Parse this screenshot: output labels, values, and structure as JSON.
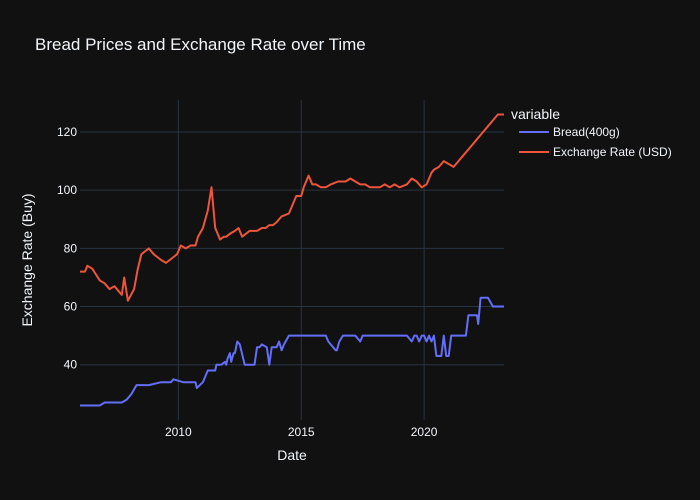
{
  "chart_data": {
    "type": "line",
    "title": "Bread Prices and Exchange Rate over Time",
    "xlabel": "Date",
    "ylabel": "Exchange Rate (Buy)",
    "legend_title": "variable",
    "legend_position": "top-right",
    "grid": true,
    "xlim": [
      2006.0,
      2023.25
    ],
    "ylim": [
      21,
      131
    ],
    "x_ticks": [
      2010,
      2015,
      2020
    ],
    "x_tick_labels": [
      "2010",
      "2015",
      "2020"
    ],
    "y_ticks": [
      40,
      60,
      80,
      100,
      120
    ],
    "y_tick_labels": [
      "40",
      "60",
      "80",
      "100",
      "120"
    ],
    "colors": {
      "background": "#111111",
      "grid": "#283442",
      "text": "#f2f5fa",
      "bread": "#636efa",
      "exchange": "#ef553b"
    },
    "series": [
      {
        "name": "Bread(400g)",
        "color": "#636efa",
        "x": [
          2006.0,
          2006.5,
          2006.8,
          2007.0,
          2007.4,
          2007.5,
          2007.7,
          2007.9,
          2008.1,
          2008.3,
          2008.7,
          2008.8,
          2009.3,
          2009.4,
          2009.5,
          2009.6,
          2009.7,
          2009.8,
          2010.2,
          2010.3,
          2010.4,
          2010.5,
          2010.7,
          2010.75,
          2011.0,
          2011.2,
          2011.25,
          2011.5,
          2011.55,
          2011.7,
          2011.75,
          2011.9,
          2011.95,
          2012.0,
          2012.1,
          2012.15,
          2012.25,
          2012.3,
          2012.4,
          2012.5,
          2012.7,
          2012.8,
          2012.9,
          2013.1,
          2013.2,
          2013.3,
          2013.4,
          2013.6,
          2013.7,
          2013.8,
          2013.9,
          2014.0,
          2014.1,
          2014.2,
          2014.3,
          2014.5,
          2015.0,
          2016.0,
          2016.1,
          2016.2,
          2016.4,
          2016.45,
          2016.55,
          2016.7,
          2016.8,
          2017.0,
          2017.2,
          2017.4,
          2017.5,
          2017.7,
          2018.0,
          2018.5,
          2018.9,
          2019.0,
          2019.3,
          2019.5,
          2019.6,
          2019.7,
          2019.8,
          2019.9,
          2020.0,
          2020.1,
          2020.2,
          2020.3,
          2020.4,
          2020.5,
          2020.6,
          2020.7,
          2020.8,
          2020.9,
          2021.0,
          2021.1,
          2021.2,
          2021.3,
          2021.5,
          2021.7,
          2021.8,
          2021.95,
          2022.05,
          2022.15,
          2022.2,
          2022.3,
          2022.6,
          2022.8,
          2023.0,
          2023.25
        ],
        "values": [
          26,
          26,
          26,
          27,
          27,
          27,
          27,
          28,
          30,
          33,
          33,
          33,
          34,
          34,
          34,
          34,
          34,
          35,
          34,
          34,
          34,
          34,
          34,
          32,
          34,
          38,
          38,
          38,
          40,
          40,
          40,
          41,
          40,
          42,
          44,
          41,
          44,
          44,
          48,
          47,
          40,
          40,
          40,
          40,
          46,
          46,
          47,
          46,
          40,
          46,
          46,
          46,
          48,
          45,
          47,
          50,
          50,
          50,
          48,
          47,
          45,
          45,
          48,
          50,
          50,
          50,
          50,
          48,
          50,
          50,
          50,
          50,
          50,
          50,
          50,
          48,
          50,
          50,
          48,
          50,
          50,
          48,
          50,
          48,
          50,
          43,
          43,
          43,
          50,
          43,
          43,
          50,
          50,
          50,
          50,
          50,
          57,
          57,
          57,
          57,
          54,
          63,
          63,
          60,
          60,
          60
        ]
      },
      {
        "name": "Exchange Rate (USD)",
        "color": "#ef553b",
        "x": [
          2006.0,
          2006.2,
          2006.3,
          2006.5,
          2006.8,
          2007.0,
          2007.2,
          2007.4,
          2007.7,
          2007.8,
          2007.95,
          2008.2,
          2008.35,
          2008.5,
          2008.8,
          2009.0,
          2009.3,
          2009.5,
          2009.8,
          2009.95,
          2010.1,
          2010.3,
          2010.5,
          2010.7,
          2010.8,
          2011.0,
          2011.2,
          2011.35,
          2011.5,
          2011.7,
          2011.85,
          2011.95,
          2012.1,
          2012.3,
          2012.45,
          2012.6,
          2012.9,
          2013.2,
          2013.4,
          2013.55,
          2013.7,
          2013.85,
          2014.0,
          2014.2,
          2014.5,
          2014.8,
          2015.0,
          2015.1,
          2015.3,
          2015.45,
          2015.6,
          2015.8,
          2016.0,
          2016.2,
          2016.5,
          2016.8,
          2017.0,
          2017.2,
          2017.4,
          2017.6,
          2017.8,
          2018.0,
          2018.2,
          2018.4,
          2018.6,
          2018.8,
          2019.0,
          2019.3,
          2019.5,
          2019.7,
          2019.9,
          2020.1,
          2020.3,
          2020.4,
          2020.6,
          2020.8,
          2021.0,
          2021.2,
          2021.4,
          2021.6,
          2021.8,
          2022.0,
          2022.2,
          2022.4,
          2022.6,
          2022.8,
          2023.0,
          2023.25
        ],
        "values": [
          72,
          72,
          74,
          73,
          69,
          68,
          66,
          67,
          64,
          70,
          62,
          66,
          73,
          78,
          80,
          78,
          76,
          75,
          77,
          78,
          81,
          80,
          81,
          81,
          84,
          87,
          93,
          101,
          87,
          83,
          84,
          84,
          85,
          86,
          87,
          84,
          86,
          86,
          87,
          87,
          88,
          88,
          89,
          91,
          92,
          98,
          98,
          101,
          105,
          102,
          102,
          101,
          101,
          102,
          103,
          103,
          104,
          103,
          102,
          102,
          101,
          101,
          101,
          102,
          101,
          102,
          101,
          102,
          104,
          103,
          101,
          102,
          106,
          107,
          108,
          110,
          109,
          108,
          110,
          112,
          114,
          116,
          118,
          120,
          122,
          124,
          126,
          126
        ]
      }
    ]
  }
}
